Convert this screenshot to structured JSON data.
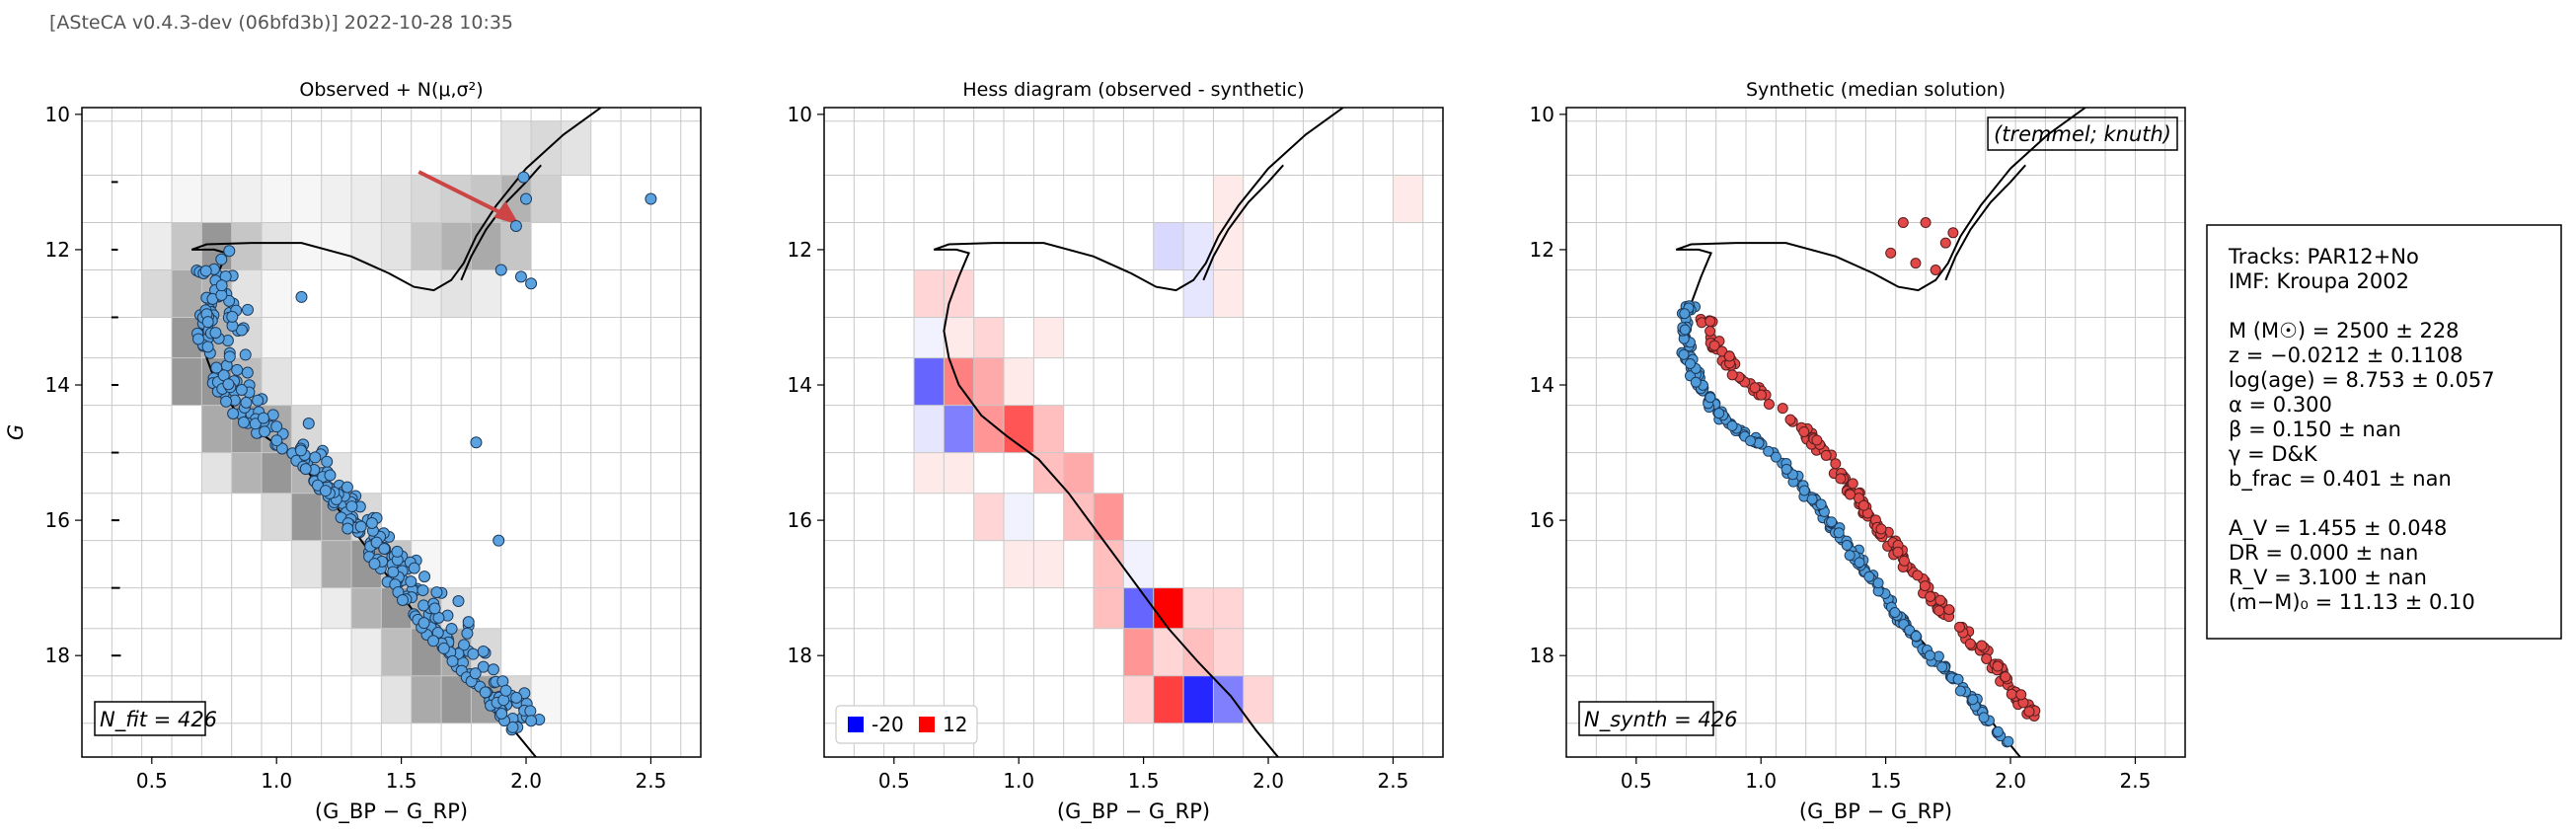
{
  "header": "[ASteCA v0.4.3-dev (06bfd3b)] 2022-10-28 10:35",
  "chart_data": [
    {
      "type": "heatmap",
      "title": "Observed + N(μ,σ²)",
      "xlabel": "(G_BP − G_RP)",
      "ylabel": "G",
      "xlim": [
        0.22,
        2.7
      ],
      "ylim": [
        19.5,
        9.9
      ],
      "xticks": [
        "0.5",
        "1.0",
        "1.5",
        "2.0",
        "2.5"
      ],
      "yticks": [
        "10",
        "12",
        "14",
        "16",
        "18"
      ],
      "annotation": "N_fit = 426",
      "hess_bins_x": [
        0.22,
        0.34,
        0.46,
        0.58,
        0.7,
        0.82,
        0.94,
        1.06,
        1.18,
        1.3,
        1.42,
        1.54,
        1.66,
        1.78,
        1.9,
        2.02,
        2.14,
        2.26,
        2.38,
        2.5,
        2.62
      ],
      "hess_bins_y": [
        10.1,
        10.9,
        11.6,
        12.3,
        13.0,
        13.6,
        14.3,
        15.0,
        15.6,
        16.3,
        17.0,
        17.6,
        18.3,
        19.0
      ],
      "hess_cells": [
        {
          "ix": 9,
          "iy": 1,
          "v": 0.1
        },
        {
          "ix": 10,
          "iy": 1,
          "v": 0.15
        },
        {
          "ix": 11,
          "iy": 1,
          "v": 0.2
        },
        {
          "ix": 12,
          "iy": 1,
          "v": 0.25
        },
        {
          "ix": 13,
          "iy": 1,
          "v": 0.3
        },
        {
          "ix": 14,
          "iy": 1,
          "v": 0.4
        },
        {
          "ix": 15,
          "iy": 1,
          "v": 0.25
        },
        {
          "ix": 3,
          "iy": 1,
          "v": 0.05
        },
        {
          "ix": 4,
          "iy": 1,
          "v": 0.08
        },
        {
          "ix": 5,
          "iy": 1,
          "v": 0.08
        },
        {
          "ix": 6,
          "iy": 1,
          "v": 0.05
        },
        {
          "ix": 7,
          "iy": 1,
          "v": 0.05
        },
        {
          "ix": 8,
          "iy": 1,
          "v": 0.08
        },
        {
          "ix": 14,
          "iy": 0,
          "v": 0.15
        },
        {
          "ix": 15,
          "iy": 0,
          "v": 0.2
        },
        {
          "ix": 16,
          "iy": 0,
          "v": 0.15
        },
        {
          "ix": 2,
          "iy": 2,
          "v": 0.1
        },
        {
          "ix": 3,
          "iy": 2,
          "v": 0.3
        },
        {
          "ix": 4,
          "iy": 2,
          "v": 0.55
        },
        {
          "ix": 5,
          "iy": 2,
          "v": 0.3
        },
        {
          "ix": 6,
          "iy": 2,
          "v": 0.15
        },
        {
          "ix": 9,
          "iy": 2,
          "v": 0.1
        },
        {
          "ix": 10,
          "iy": 2,
          "v": 0.15
        },
        {
          "ix": 11,
          "iy": 2,
          "v": 0.3
        },
        {
          "ix": 12,
          "iy": 2,
          "v": 0.4
        },
        {
          "ix": 13,
          "iy": 2,
          "v": 0.45
        },
        {
          "ix": 14,
          "iy": 2,
          "v": 0.3
        },
        {
          "ix": 7,
          "iy": 2,
          "v": 0.05
        },
        {
          "ix": 8,
          "iy": 2,
          "v": 0.05
        },
        {
          "ix": 2,
          "iy": 3,
          "v": 0.2
        },
        {
          "ix": 3,
          "iy": 3,
          "v": 0.45
        },
        {
          "ix": 4,
          "iy": 3,
          "v": 0.4
        },
        {
          "ix": 5,
          "iy": 3,
          "v": 0.15
        },
        {
          "ix": 6,
          "iy": 3,
          "v": 0.05
        },
        {
          "ix": 11,
          "iy": 3,
          "v": 0.1
        },
        {
          "ix": 12,
          "iy": 3,
          "v": 0.15
        },
        {
          "ix": 13,
          "iy": 3,
          "v": 0.1
        },
        {
          "ix": 3,
          "iy": 4,
          "v": 0.55
        },
        {
          "ix": 4,
          "iy": 4,
          "v": 0.4
        },
        {
          "ix": 5,
          "iy": 4,
          "v": 0.2
        },
        {
          "ix": 6,
          "iy": 4,
          "v": 0.05
        },
        {
          "ix": 3,
          "iy": 5,
          "v": 0.55
        },
        {
          "ix": 4,
          "iy": 5,
          "v": 0.55
        },
        {
          "ix": 5,
          "iy": 5,
          "v": 0.35
        },
        {
          "ix": 6,
          "iy": 5,
          "v": 0.15
        },
        {
          "ix": 4,
          "iy": 6,
          "v": 0.45
        },
        {
          "ix": 5,
          "iy": 6,
          "v": 0.55
        },
        {
          "ix": 6,
          "iy": 6,
          "v": 0.45
        },
        {
          "ix": 7,
          "iy": 6,
          "v": 0.2
        },
        {
          "ix": 4,
          "iy": 7,
          "v": 0.15
        },
        {
          "ix": 5,
          "iy": 7,
          "v": 0.4
        },
        {
          "ix": 6,
          "iy": 7,
          "v": 0.55
        },
        {
          "ix": 7,
          "iy": 7,
          "v": 0.4
        },
        {
          "ix": 8,
          "iy": 7,
          "v": 0.15
        },
        {
          "ix": 6,
          "iy": 8,
          "v": 0.2
        },
        {
          "ix": 7,
          "iy": 8,
          "v": 0.55
        },
        {
          "ix": 8,
          "iy": 8,
          "v": 0.5
        },
        {
          "ix": 9,
          "iy": 8,
          "v": 0.2
        },
        {
          "ix": 7,
          "iy": 9,
          "v": 0.15
        },
        {
          "ix": 8,
          "iy": 9,
          "v": 0.45
        },
        {
          "ix": 9,
          "iy": 9,
          "v": 0.55
        },
        {
          "ix": 10,
          "iy": 9,
          "v": 0.3
        },
        {
          "ix": 11,
          "iy": 9,
          "v": 0.05
        },
        {
          "ix": 8,
          "iy": 10,
          "v": 0.1
        },
        {
          "ix": 9,
          "iy": 10,
          "v": 0.4
        },
        {
          "ix": 10,
          "iy": 10,
          "v": 0.55
        },
        {
          "ix": 11,
          "iy": 10,
          "v": 0.4
        },
        {
          "ix": 12,
          "iy": 10,
          "v": 0.15
        },
        {
          "ix": 9,
          "iy": 11,
          "v": 0.1
        },
        {
          "ix": 10,
          "iy": 11,
          "v": 0.35
        },
        {
          "ix": 11,
          "iy": 11,
          "v": 0.55
        },
        {
          "ix": 12,
          "iy": 11,
          "v": 0.45
        },
        {
          "ix": 13,
          "iy": 11,
          "v": 0.2
        },
        {
          "ix": 10,
          "iy": 12,
          "v": 0.15
        },
        {
          "ix": 11,
          "iy": 12,
          "v": 0.45
        },
        {
          "ix": 12,
          "iy": 12,
          "v": 0.55
        },
        {
          "ix": 13,
          "iy": 12,
          "v": 0.5
        },
        {
          "ix": 14,
          "iy": 12,
          "v": 0.2
        },
        {
          "ix": 15,
          "iy": 12,
          "v": 0.05
        },
        {
          "ix": 11,
          "iy": 13,
          "v": 0.25
        },
        {
          "ix": 12,
          "iy": 13,
          "v": 0.45
        },
        {
          "ix": 13,
          "iy": 13,
          "v": 0.55
        },
        {
          "ix": 14,
          "iy": 13,
          "v": 0.4
        },
        {
          "ix": 15,
          "iy": 13,
          "v": 0.2
        },
        {
          "ix": 16,
          "iy": 13,
          "v": 0.05
        }
      ],
      "error_bars": [
        {
          "G": 11.0,
          "err": 0.02
        },
        {
          "G": 12.0,
          "err": 0.02
        },
        {
          "G": 13.0,
          "err": 0.03
        },
        {
          "G": 14.0,
          "err": 0.04
        },
        {
          "G": 15.0,
          "err": 0.05
        },
        {
          "G": 16.0,
          "err": 0.07
        },
        {
          "G": 17.0,
          "err": 0.09
        },
        {
          "G": 18.0,
          "err": 0.12
        }
      ],
      "reddening_arrow": {
        "from": [
          1.57,
          10.85
        ],
        "to": [
          1.95,
          11.55
        ],
        "color": "#cc4444"
      },
      "points_color": "#5ba3e0",
      "outliers": [
        [
          2.5,
          11.25
        ],
        [
          1.99,
          10.93
        ],
        [
          2.0,
          11.25
        ],
        [
          1.96,
          11.65
        ],
        [
          1.9,
          12.3
        ],
        [
          1.98,
          12.4
        ],
        [
          2.02,
          12.5
        ],
        [
          1.8,
          14.85
        ],
        [
          1.89,
          16.3
        ],
        [
          1.1,
          12.7
        ]
      ]
    },
    {
      "type": "heatmap",
      "title": "Hess diagram (observed - synthetic)",
      "xlabel": "(G_BP − G_RP)",
      "xlim": [
        0.22,
        2.7
      ],
      "ylim": [
        19.5,
        9.9
      ],
      "xticks": [
        "0.5",
        "1.0",
        "1.5",
        "2.0",
        "2.5"
      ],
      "yticks": [
        "10",
        "12",
        "14",
        "16",
        "18"
      ],
      "legend": [
        {
          "label": "-20",
          "color": "#0000ff"
        },
        {
          "label": "12",
          "color": "#ff0000"
        }
      ],
      "vmin": -20,
      "vmax": 12,
      "hess_cells": [
        {
          "ix": 4,
          "iy": 3,
          "v": 2
        },
        {
          "ix": 3,
          "iy": 3,
          "v": 2
        },
        {
          "ix": 12,
          "iy": 3,
          "v": -2
        },
        {
          "ix": 13,
          "iy": 3,
          "v": 1
        },
        {
          "ix": 19,
          "iy": 1,
          "v": 1
        },
        {
          "ix": 13,
          "iy": 1,
          "v": 1
        },
        {
          "ix": 13,
          "iy": 2,
          "v": 1
        },
        {
          "ix": 11,
          "iy": 2,
          "v": -3
        },
        {
          "ix": 12,
          "iy": 2,
          "v": -2
        },
        {
          "ix": 3,
          "iy": 4,
          "v": -1
        },
        {
          "ix": 4,
          "iy": 4,
          "v": 1
        },
        {
          "ix": 5,
          "iy": 4,
          "v": 2
        },
        {
          "ix": 7,
          "iy": 4,
          "v": 1
        },
        {
          "ix": 3,
          "iy": 5,
          "v": -12
        },
        {
          "ix": 4,
          "iy": 5,
          "v": 6
        },
        {
          "ix": 5,
          "iy": 5,
          "v": 4
        },
        {
          "ix": 6,
          "iy": 5,
          "v": 1
        },
        {
          "ix": 3,
          "iy": 6,
          "v": -2
        },
        {
          "ix": 4,
          "iy": 6,
          "v": -10
        },
        {
          "ix": 5,
          "iy": 6,
          "v": 5
        },
        {
          "ix": 6,
          "iy": 6,
          "v": 8
        },
        {
          "ix": 7,
          "iy": 6,
          "v": 3
        },
        {
          "ix": 3,
          "iy": 7,
          "v": 1
        },
        {
          "ix": 4,
          "iy": 7,
          "v": 1
        },
        {
          "ix": 7,
          "iy": 7,
          "v": 3
        },
        {
          "ix": 8,
          "iy": 7,
          "v": 4
        },
        {
          "ix": 5,
          "iy": 8,
          "v": 2
        },
        {
          "ix": 6,
          "iy": 8,
          "v": -1
        },
        {
          "ix": 8,
          "iy": 8,
          "v": 3
        },
        {
          "ix": 9,
          "iy": 8,
          "v": 5
        },
        {
          "ix": 6,
          "iy": 9,
          "v": 1
        },
        {
          "ix": 7,
          "iy": 9,
          "v": 1
        },
        {
          "ix": 9,
          "iy": 9,
          "v": 3
        },
        {
          "ix": 10,
          "iy": 9,
          "v": -1
        },
        {
          "ix": 9,
          "iy": 10,
          "v": 3
        },
        {
          "ix": 10,
          "iy": 10,
          "v": -12
        },
        {
          "ix": 11,
          "iy": 10,
          "v": 12
        },
        {
          "ix": 12,
          "iy": 10,
          "v": 2
        },
        {
          "ix": 13,
          "iy": 10,
          "v": 2
        },
        {
          "ix": 10,
          "iy": 11,
          "v": 5
        },
        {
          "ix": 11,
          "iy": 11,
          "v": 2
        },
        {
          "ix": 12,
          "iy": 11,
          "v": 3
        },
        {
          "ix": 13,
          "iy": 11,
          "v": 2
        },
        {
          "ix": 10,
          "iy": 12,
          "v": 2
        },
        {
          "ix": 11,
          "iy": 12,
          "v": 9
        },
        {
          "ix": 12,
          "iy": 12,
          "v": -17
        },
        {
          "ix": 13,
          "iy": 12,
          "v": -10
        },
        {
          "ix": 14,
          "iy": 12,
          "v": 2
        },
        {
          "ix": 12,
          "iy": 13,
          "v": 7
        },
        {
          "ix": 13,
          "iy": 13,
          "v": 1
        },
        {
          "ix": 14,
          "iy": 13,
          "v": -20
        },
        {
          "ix": 15,
          "iy": 13,
          "v": -10
        },
        {
          "ix": 16,
          "iy": 13,
          "v": -1
        }
      ]
    },
    {
      "type": "scatter",
      "title": "Synthetic (median solution)",
      "xlabel": "(G_BP − G_RP)",
      "xlim": [
        0.22,
        2.7
      ],
      "ylim": [
        19.5,
        9.9
      ],
      "xticks": [
        "0.5",
        "1.0",
        "1.5",
        "2.0",
        "2.5"
      ],
      "yticks": [
        "10",
        "12",
        "14",
        "16",
        "18"
      ],
      "label_box": "(tremmel; knuth)",
      "annotation": "N_synth = 426",
      "single_color": "#4f9bd9",
      "binary_color": "#e24848"
    }
  ],
  "info_box": {
    "lines": [
      "Tracks: PAR12+No",
      "IMF: Kroupa 2002",
      "",
      "M (M☉)    =  2500 ± 228",
      "z           =  −0.0212 ± 0.1108",
      "log(age)  =  8.753 ± 0.057",
      "α           =  0.300",
      "β           =  0.150 ± nan",
      "γ           =  D&K",
      "b_frac     =  0.401 ± nan",
      "",
      "A_V         =  1.455 ± 0.048",
      "DR          =  0.000 ± nan",
      "R_V         =  3.100 ± nan",
      "(m−M)₀  =  11.13 ± 0.10"
    ]
  },
  "colors": {
    "isochrone": "#000000",
    "grid": "#b0b0b0",
    "accent_blue": "#0000ff",
    "accent_red": "#ff0000"
  }
}
